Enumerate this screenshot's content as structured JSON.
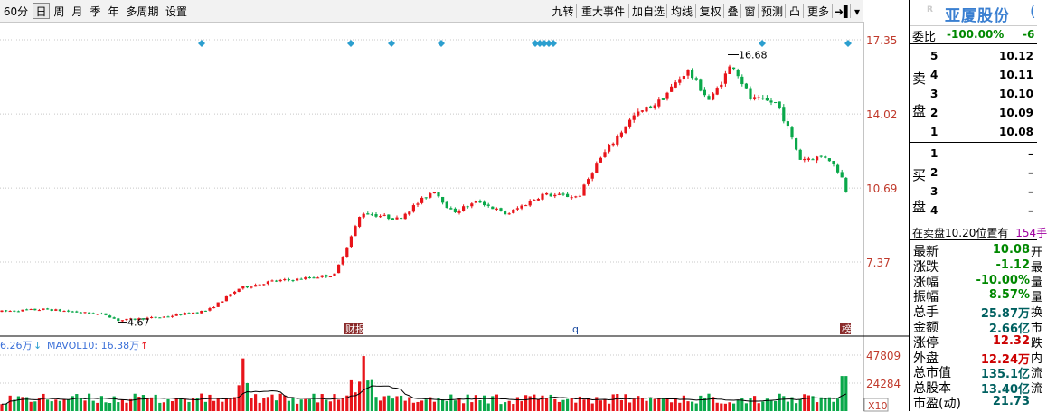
{
  "toolbar": {
    "left_tabs": [
      {
        "label": "60分",
        "active": false
      },
      {
        "label": "日",
        "active": true
      },
      {
        "label": "周",
        "active": false
      },
      {
        "label": "月",
        "active": false
      },
      {
        "label": "季",
        "active": false
      },
      {
        "label": "年",
        "active": false
      },
      {
        "label": "多周期",
        "active": false
      },
      {
        "label": "设置",
        "active": false
      }
    ],
    "right_buttons": [
      "九转",
      "重大事件",
      "加自选",
      "均线",
      "复权",
      "叠",
      "窗",
      "预测",
      "凸",
      "更多",
      "➜▌",
      "▾"
    ]
  },
  "price_axis": {
    "labels": [
      "17.35",
      "14.02",
      "10.69",
      "7.37"
    ],
    "values": [
      17.35,
      14.02,
      10.69,
      7.37
    ],
    "max_label": "16.68",
    "min_label": "4.67",
    "max_value": 16.68,
    "min_value": 4.67
  },
  "event_markers": {
    "labels": [
      "财报",
      "q",
      "榜"
    ]
  },
  "volume": {
    "legend_left": "6.26万",
    "legend_arrow_left": "↓",
    "legend_ma": "MAVOL10: 16.38万",
    "legend_arrow_ma": "↑",
    "axis_labels": [
      "47809",
      "24284"
    ],
    "axis_unit": "X10"
  },
  "quote_panel": {
    "stock_name": "亚厦股份",
    "stock_code_fragment": "(",
    "weibi_label": "委比",
    "weibi_value": "-100.00%",
    "weicha_fragment": "-6",
    "sell_label_1": "卖",
    "sell_label_2": "盘",
    "buy_label_1": "买",
    "buy_label_2": "盘",
    "sell_levels": [
      {
        "level": "5",
        "price": "10.12"
      },
      {
        "level": "4",
        "price": "10.11"
      },
      {
        "level": "3",
        "price": "10.10"
      },
      {
        "level": "2",
        "price": "10.09"
      },
      {
        "level": "1",
        "price": "10.08"
      }
    ],
    "buy_levels": [
      {
        "level": "1",
        "price": "–"
      },
      {
        "level": "2",
        "price": "–"
      },
      {
        "level": "3",
        "price": "–"
      },
      {
        "level": "4",
        "price": "–"
      }
    ],
    "notice_text": "在卖盘10.20位置有",
    "notice_value": "154手",
    "stats": [
      {
        "label": "最新",
        "value": "10.08",
        "tail": "开",
        "color": "#008800"
      },
      {
        "label": "涨跌",
        "value": "-1.12",
        "tail": "最",
        "color": "#008800"
      },
      {
        "label": "涨幅",
        "value": "-10.00%",
        "tail": "量",
        "color": "#008800"
      },
      {
        "label": "振幅",
        "value": "8.57%",
        "tail": "量",
        "color": "#008800"
      },
      {
        "label": "总手",
        "value": "25.87万",
        "tail": "换",
        "color": "#006060"
      },
      {
        "label": "金额",
        "value": "2.66亿",
        "tail": "市",
        "color": "#006060"
      },
      {
        "label": "涨停",
        "value": "12.32",
        "tail": "跌",
        "color": "#cc0000"
      },
      {
        "label": "外盘",
        "value": "12.24万",
        "tail": "内",
        "color": "#cc0000"
      },
      {
        "label": "总市值",
        "value": "135.1亿",
        "tail": "流",
        "color": "#006060"
      },
      {
        "label": "总股本",
        "value": "13.40亿",
        "tail": "流",
        "color": "#006060"
      },
      {
        "label": "市盈(动)",
        "value": "21.73",
        "tail": "",
        "color": "#006060"
      }
    ]
  },
  "colors": {
    "up": "#e8141a",
    "down": "#0aa84a",
    "grid": "#c8c8c8",
    "axis_text": "#c0392b",
    "marker": "#2c9fcf",
    "name": "#3a7fd1",
    "ma_line": "#000000"
  }
}
